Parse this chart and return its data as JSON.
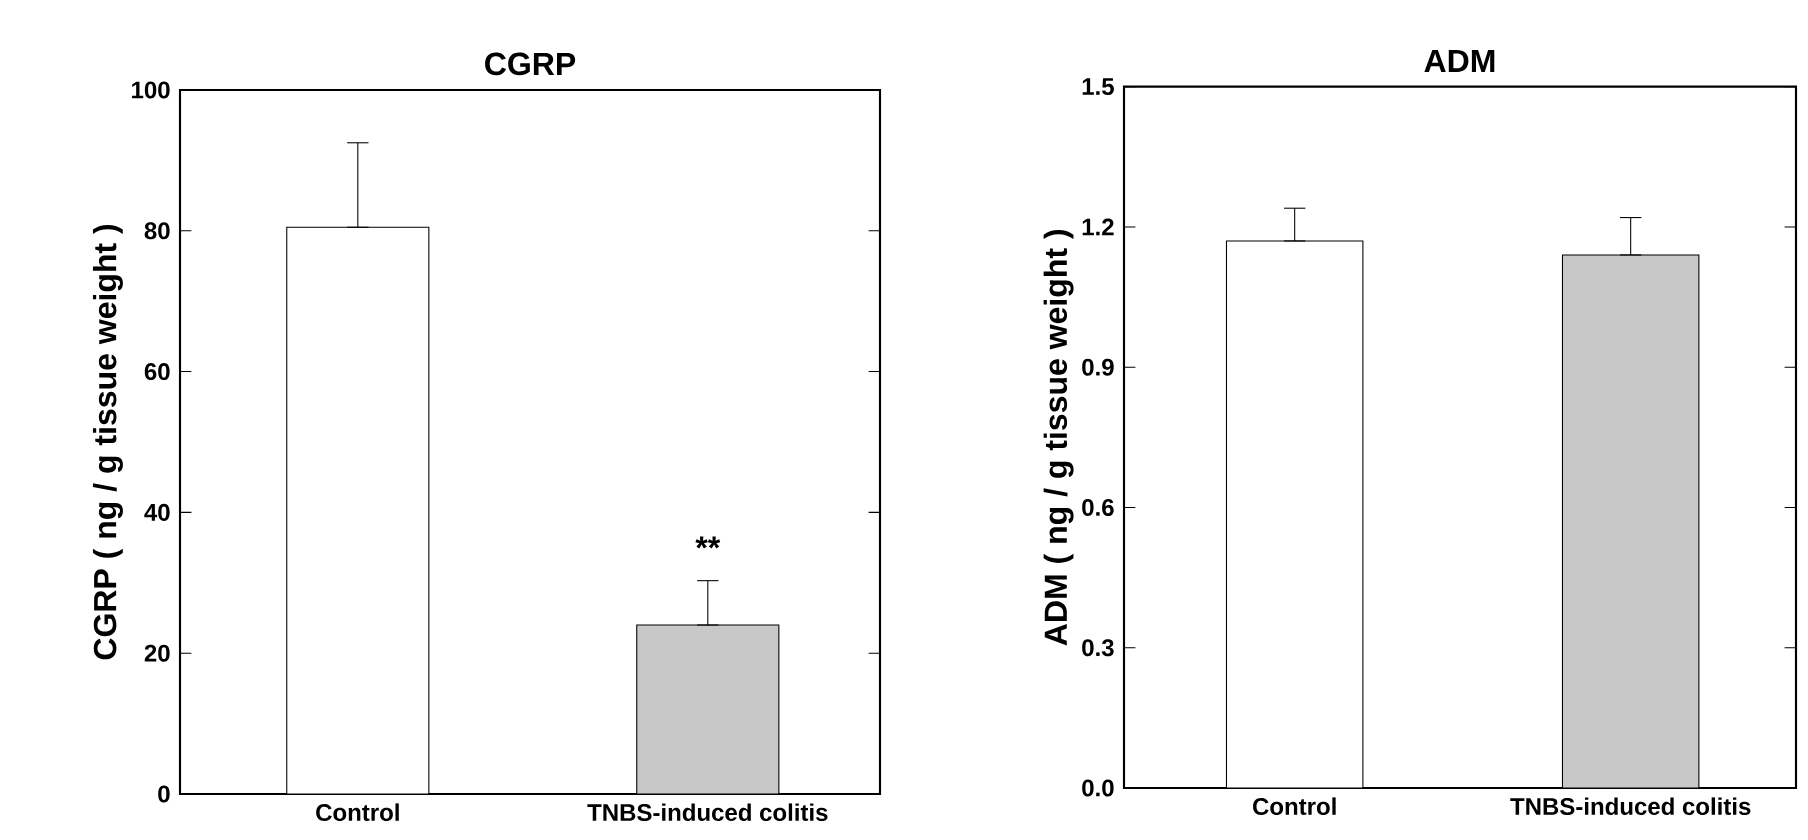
{
  "chart_data": [
    {
      "type": "bar",
      "title": "CGRP",
      "ylabel": "CGRP ( ng / g tissue weight )",
      "categories": [
        "Control",
        "TNBS-induced colitis"
      ],
      "values": [
        80.5,
        24
      ],
      "errors": [
        [
          80.5,
          92.5
        ],
        [
          24,
          30.3
        ]
      ],
      "colors": [
        "#ffffff",
        "#c8c8c8"
      ],
      "ylim": [
        0,
        100
      ],
      "yticks": [
        0,
        20,
        40,
        60,
        80,
        100
      ],
      "annotations": [
        "**"
      ]
    },
    {
      "type": "bar",
      "title": "ADM",
      "ylabel": "ADM ( ng / g tissue weight )",
      "categories": [
        "Control",
        "TNBS-induced colitis"
      ],
      "values": [
        1.17,
        1.14
      ],
      "errors": [
        [
          1.17,
          1.24
        ],
        [
          1.14,
          1.22
        ]
      ],
      "colors": [
        "#ffffff",
        "#c8c8c8"
      ],
      "ylim": [
        0,
        1.5
      ],
      "yticks": [
        {
          "value": 0,
          "label": "0.0"
        },
        0.3,
        0.6,
        0.9,
        1.2,
        1.5
      ]
    }
  ]
}
